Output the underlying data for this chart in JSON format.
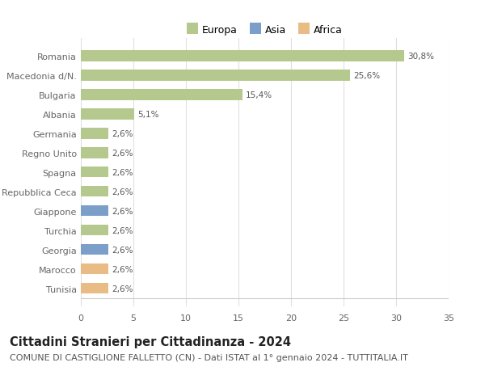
{
  "countries": [
    "Romania",
    "Macedonia d/N.",
    "Bulgaria",
    "Albania",
    "Germania",
    "Regno Unito",
    "Spagna",
    "Repubblica Ceca",
    "Giappone",
    "Turchia",
    "Georgia",
    "Marocco",
    "Tunisia"
  ],
  "values": [
    30.8,
    25.6,
    15.4,
    5.1,
    2.6,
    2.6,
    2.6,
    2.6,
    2.6,
    2.6,
    2.6,
    2.6,
    2.6
  ],
  "labels": [
    "30,8%",
    "25,6%",
    "15,4%",
    "5,1%",
    "2,6%",
    "2,6%",
    "2,6%",
    "2,6%",
    "2,6%",
    "2,6%",
    "2,6%",
    "2,6%",
    "2,6%"
  ],
  "continents": [
    "Europa",
    "Europa",
    "Europa",
    "Europa",
    "Europa",
    "Europa",
    "Europa",
    "Europa",
    "Asia",
    "Europa",
    "Asia",
    "Africa",
    "Africa"
  ],
  "colors": {
    "Europa": "#b5c98e",
    "Asia": "#7b9fc8",
    "Africa": "#e8bc84"
  },
  "legend_labels": [
    "Europa",
    "Asia",
    "Africa"
  ],
  "legend_colors": [
    "#b5c98e",
    "#7b9fc8",
    "#e8bc84"
  ],
  "title": "Cittadini Stranieri per Cittadinanza - 2024",
  "subtitle": "COMUNE DI CASTIGLIONE FALLETTO (CN) - Dati ISTAT al 1° gennaio 2024 - TUTTITALIA.IT",
  "xlim": [
    0,
    35
  ],
  "xticks": [
    0,
    5,
    10,
    15,
    20,
    25,
    30,
    35
  ],
  "background_color": "#ffffff",
  "grid_color": "#e0e0e0",
  "bar_height": 0.55,
  "title_fontsize": 10.5,
  "subtitle_fontsize": 8,
  "label_fontsize": 7.5,
  "tick_fontsize": 8,
  "legend_fontsize": 9
}
